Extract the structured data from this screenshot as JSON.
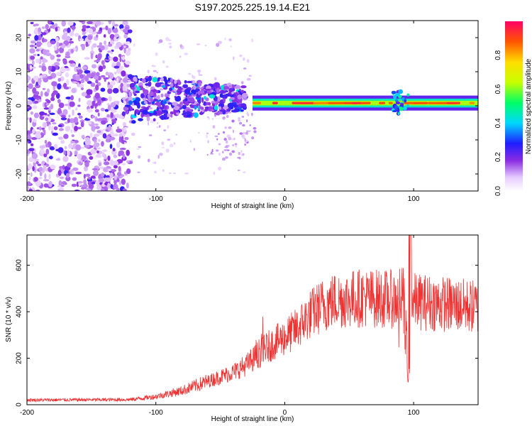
{
  "chart_data": [
    {
      "type": "heatmap",
      "title": "S197.2025.225.19.14.E21",
      "xlabel": "Height of straight line (km)",
      "ylabel": "Frequency (Hz)",
      "xlim": [
        -200,
        150
      ],
      "ylim": [
        -25,
        25
      ],
      "xticks": [
        -200,
        -100,
        0,
        100
      ],
      "yticks": [
        -20,
        -10,
        0,
        10,
        20
      ],
      "colorbar": {
        "label": "Normalized spectral amplitude",
        "range": [
          0,
          1
        ],
        "ticks": [
          "0.0",
          "0.2",
          "0.4",
          "0.6",
          "0.8"
        ]
      },
      "regions": [
        {
          "name": "noise",
          "x_range": [
            -200,
            -120
          ],
          "f_range": [
            -25,
            25
          ],
          "amplitude": 0.15
        },
        {
          "name": "broad signal",
          "x_range": [
            -120,
            -30
          ],
          "f_range": [
            -5,
            9
          ],
          "amplitude": 0.3
        },
        {
          "name": "carrier line",
          "x_range": [
            -25,
            150
          ],
          "f_center": 0.8,
          "amplitude": 0.95
        }
      ]
    },
    {
      "type": "line",
      "title": "",
      "xlabel": "Height of straight line (km)",
      "ylabel": "SNR (10 * v/v)",
      "xlim": [
        -200,
        150
      ],
      "ylim": [
        0,
        730
      ],
      "xticks": [
        -200,
        -100,
        0,
        100
      ],
      "yticks": [
        0,
        200,
        400,
        600
      ],
      "color": "#ee3333",
      "envelope": {
        "x": [
          -200,
          -120,
          -100,
          -80,
          -60,
          -40,
          -30,
          -20,
          -10,
          0,
          10,
          20,
          30,
          40,
          60,
          80,
          90,
          95,
          97,
          100,
          110,
          130,
          150
        ],
        "y": [
          20,
          22,
          35,
          60,
          100,
          140,
          170,
          220,
          260,
          290,
          330,
          390,
          430,
          450,
          460,
          455,
          450,
          420,
          450,
          445,
          440,
          430,
          420
        ]
      },
      "features": [
        {
          "x": 97,
          "type": "spike",
          "y_max": 730
        },
        {
          "x": 96,
          "type": "dip",
          "y_min": 95
        }
      ]
    }
  ]
}
